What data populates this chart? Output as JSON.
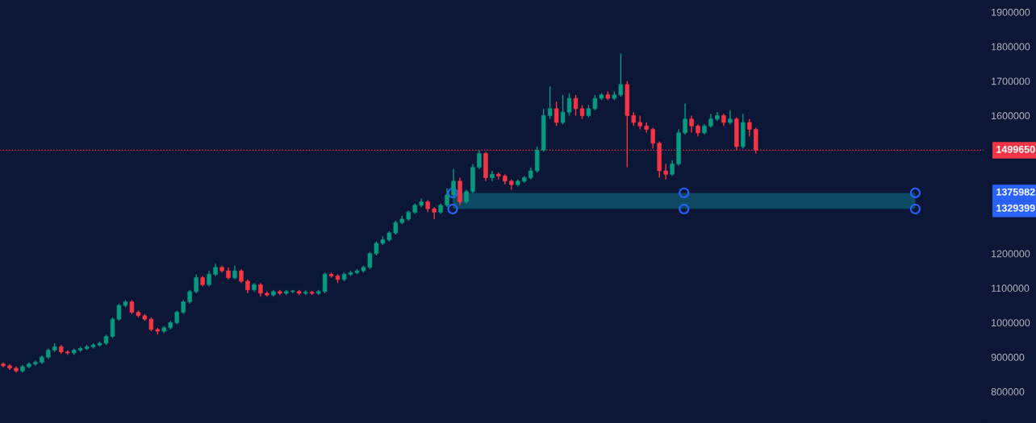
{
  "chart_data": {
    "type": "candlestick",
    "categories": [
      null,
      null,
      null,
      null,
      null,
      null,
      null,
      null,
      null,
      null,
      null,
      null,
      null,
      null,
      null,
      null,
      null,
      null,
      null,
      null,
      null,
      null,
      null,
      null,
      null,
      null,
      null,
      null,
      null,
      null,
      null,
      null,
      null,
      null,
      null,
      null,
      null,
      null,
      null,
      null,
      null,
      null,
      null,
      null,
      null,
      null,
      null,
      null,
      null,
      null,
      null,
      null,
      null,
      null,
      null,
      null,
      null,
      null,
      null,
      null,
      null,
      null,
      null,
      null,
      null,
      null,
      null,
      null,
      null,
      null,
      null,
      null,
      null,
      null,
      null,
      null,
      null,
      null,
      null,
      null,
      null,
      null,
      null,
      null,
      null,
      null,
      null,
      null,
      null,
      null,
      null,
      null,
      null,
      null,
      null,
      null,
      null,
      null,
      null,
      null,
      null,
      null,
      null,
      null,
      null,
      null,
      null,
      null,
      null,
      null,
      null,
      null,
      null,
      null,
      null,
      null,
      null,
      null,
      null,
      null,
      null,
      null,
      null,
      null,
      null,
      null,
      null,
      null,
      null,
      null,
      null,
      null,
      null,
      null,
      null,
      null,
      null,
      null,
      null,
      null,
      null,
      null,
      null,
      null,
      null,
      null,
      null,
      null,
      null,
      null,
      null,
      null,
      null
    ],
    "ohlc": [
      [
        880000,
        885000,
        870000,
        875000
      ],
      [
        875000,
        880000,
        863000,
        868000
      ],
      [
        868000,
        873000,
        855000,
        860000
      ],
      [
        860000,
        877000,
        855000,
        872000
      ],
      [
        872000,
        885000,
        867000,
        880000
      ],
      [
        880000,
        890000,
        875000,
        885000
      ],
      [
        885000,
        905000,
        880000,
        900000
      ],
      [
        900000,
        925000,
        895000,
        920000
      ],
      [
        920000,
        940000,
        915000,
        930000
      ],
      [
        930000,
        935000,
        910000,
        915000
      ],
      [
        915000,
        920000,
        907000,
        912000
      ],
      [
        912000,
        925000,
        907000,
        920000
      ],
      [
        920000,
        930000,
        915000,
        925000
      ],
      [
        925000,
        935000,
        920000,
        930000
      ],
      [
        930000,
        940000,
        925000,
        935000
      ],
      [
        935000,
        945000,
        930000,
        940000
      ],
      [
        940000,
        965000,
        935000,
        960000
      ],
      [
        960000,
        1015000,
        955000,
        1010000
      ],
      [
        1010000,
        1055000,
        1005000,
        1050000
      ],
      [
        1050000,
        1065000,
        1045000,
        1060000
      ],
      [
        1060000,
        1065000,
        1025000,
        1030000
      ],
      [
        1030000,
        1035000,
        1015000,
        1020000
      ],
      [
        1020000,
        1025000,
        1005000,
        1010000
      ],
      [
        1010000,
        1015000,
        975000,
        980000
      ],
      [
        980000,
        985000,
        965000,
        975000
      ],
      [
        975000,
        990000,
        970000,
        985000
      ],
      [
        985000,
        1005000,
        980000,
        1000000
      ],
      [
        1000000,
        1035000,
        995000,
        1030000
      ],
      [
        1030000,
        1065000,
        1025000,
        1060000
      ],
      [
        1060000,
        1095000,
        1055000,
        1090000
      ],
      [
        1090000,
        1140000,
        1085000,
        1130000
      ],
      [
        1130000,
        1135000,
        1105000,
        1110000
      ],
      [
        1110000,
        1150000,
        1105000,
        1140000
      ],
      [
        1140000,
        1170000,
        1135000,
        1160000
      ],
      [
        1160000,
        1165000,
        1145000,
        1150000
      ],
      [
        1150000,
        1160000,
        1125000,
        1130000
      ],
      [
        1130000,
        1165000,
        1125000,
        1150000
      ],
      [
        1150000,
        1155000,
        1115000,
        1120000
      ],
      [
        1120000,
        1125000,
        1085000,
        1095000
      ],
      [
        1095000,
        1115000,
        1090000,
        1110000
      ],
      [
        1110000,
        1115000,
        1075000,
        1085000
      ],
      [
        1085000,
        1090000,
        1075000,
        1080000
      ],
      [
        1080000,
        1095000,
        1075000,
        1090000
      ],
      [
        1090000,
        1095000,
        1080000,
        1085000
      ],
      [
        1085000,
        1095000,
        1080000,
        1090000
      ],
      [
        1090000,
        1095000,
        1085000,
        1090000
      ],
      [
        1090000,
        1095000,
        1080000,
        1085000
      ],
      [
        1085000,
        1093000,
        1080000,
        1088000
      ],
      [
        1088000,
        1092000,
        1080000,
        1085000
      ],
      [
        1085000,
        1095000,
        1080000,
        1090000
      ],
      [
        1090000,
        1145000,
        1085000,
        1140000
      ],
      [
        1140000,
        1145000,
        1130000,
        1135000
      ],
      [
        1135000,
        1140000,
        1115000,
        1125000
      ],
      [
        1125000,
        1145000,
        1120000,
        1140000
      ],
      [
        1140000,
        1150000,
        1135000,
        1145000
      ],
      [
        1145000,
        1155000,
        1140000,
        1150000
      ],
      [
        1150000,
        1165000,
        1145000,
        1160000
      ],
      [
        1160000,
        1205000,
        1155000,
        1200000
      ],
      [
        1200000,
        1235000,
        1195000,
        1230000
      ],
      [
        1230000,
        1250000,
        1225000,
        1240000
      ],
      [
        1240000,
        1265000,
        1235000,
        1260000
      ],
      [
        1260000,
        1295000,
        1255000,
        1290000
      ],
      [
        1290000,
        1310000,
        1285000,
        1300000
      ],
      [
        1300000,
        1325000,
        1295000,
        1320000
      ],
      [
        1320000,
        1345000,
        1315000,
        1340000
      ],
      [
        1340000,
        1360000,
        1335000,
        1350000
      ],
      [
        1350000,
        1355000,
        1320000,
        1330000
      ],
      [
        1330000,
        1335000,
        1300000,
        1320000
      ],
      [
        1320000,
        1345000,
        1315000,
        1340000
      ],
      [
        1340000,
        1390000,
        1335000,
        1370000
      ],
      [
        1370000,
        1445000,
        1360000,
        1410000
      ],
      [
        1410000,
        1420000,
        1340000,
        1350000
      ],
      [
        1350000,
        1385000,
        1345000,
        1380000
      ],
      [
        1380000,
        1460000,
        1375000,
        1450000
      ],
      [
        1450000,
        1500000,
        1445000,
        1490000
      ],
      [
        1490000,
        1495000,
        1410000,
        1420000
      ],
      [
        1420000,
        1440000,
        1410000,
        1430000
      ],
      [
        1430000,
        1435000,
        1415000,
        1425000
      ],
      [
        1425000,
        1430000,
        1400000,
        1410000
      ],
      [
        1410000,
        1415000,
        1385000,
        1400000
      ],
      [
        1400000,
        1415000,
        1395000,
        1410000
      ],
      [
        1410000,
        1425000,
        1405000,
        1420000
      ],
      [
        1420000,
        1450000,
        1415000,
        1440000
      ],
      [
        1440000,
        1510000,
        1435000,
        1500000
      ],
      [
        1500000,
        1620000,
        1495000,
        1600000
      ],
      [
        1600000,
        1685000,
        1590000,
        1620000
      ],
      [
        1620000,
        1640000,
        1570000,
        1580000
      ],
      [
        1580000,
        1660000,
        1575000,
        1610000
      ],
      [
        1610000,
        1665000,
        1600000,
        1650000
      ],
      [
        1650000,
        1660000,
        1600000,
        1620000
      ],
      [
        1620000,
        1630000,
        1590000,
        1600000
      ],
      [
        1600000,
        1630000,
        1595000,
        1620000
      ],
      [
        1620000,
        1660000,
        1615000,
        1650000
      ],
      [
        1650000,
        1665000,
        1645000,
        1660000
      ],
      [
        1660000,
        1670000,
        1645000,
        1650000
      ],
      [
        1650000,
        1670000,
        1645000,
        1660000
      ],
      [
        1660000,
        1780000,
        1655000,
        1690000
      ],
      [
        1690000,
        1700000,
        1450000,
        1600000
      ],
      [
        1600000,
        1610000,
        1570000,
        1580000
      ],
      [
        1580000,
        1600000,
        1560000,
        1570000
      ],
      [
        1570000,
        1580000,
        1550000,
        1560000
      ],
      [
        1560000,
        1565000,
        1505000,
        1520000
      ],
      [
        1520000,
        1525000,
        1420000,
        1440000
      ],
      [
        1440000,
        1460000,
        1415000,
        1430000
      ],
      [
        1430000,
        1470000,
        1425000,
        1460000
      ],
      [
        1460000,
        1560000,
        1455000,
        1550000
      ],
      [
        1550000,
        1635000,
        1545000,
        1590000
      ],
      [
        1590000,
        1600000,
        1550000,
        1570000
      ],
      [
        1570000,
        1575000,
        1540000,
        1550000
      ],
      [
        1550000,
        1575000,
        1545000,
        1570000
      ],
      [
        1570000,
        1605000,
        1565000,
        1590000
      ],
      [
        1590000,
        1610000,
        1585000,
        1600000
      ],
      [
        1600000,
        1605000,
        1570000,
        1580000
      ],
      [
        1580000,
        1615000,
        1575000,
        1590000
      ],
      [
        1590000,
        1595000,
        1500000,
        1510000
      ],
      [
        1510000,
        1605000,
        1505000,
        1580000
      ],
      [
        1580000,
        1590000,
        1540000,
        1560000
      ],
      [
        1560000,
        1565000,
        1490000,
        1499650
      ],
      null,
      null,
      null,
      null,
      null,
      null,
      null,
      null,
      null,
      null,
      null,
      null,
      null,
      null,
      null,
      null,
      null,
      null,
      null,
      null,
      null,
      null,
      null,
      null,
      null,
      null,
      null,
      null,
      null,
      null,
      null,
      null,
      null,
      null,
      null
    ],
    "annotations": [
      "1375982",
      "1329399"
    ],
    "ylim": [
      709000,
      1935000
    ],
    "yticks": [
      800000,
      900000,
      1000000,
      1100000,
      1200000,
      1600000,
      1700000,
      1800000,
      1900000
    ],
    "ref_lines": [
      {
        "axis": "y",
        "value": 1499650,
        "label": "1499650",
        "color": "#f23645",
        "line_style": "dotted"
      }
    ],
    "bands": [
      {
        "axis": "y",
        "from": 1329399,
        "to": 1375982,
        "color": "#0e4a63"
      }
    ],
    "grid": false,
    "legend": false
  }
}
